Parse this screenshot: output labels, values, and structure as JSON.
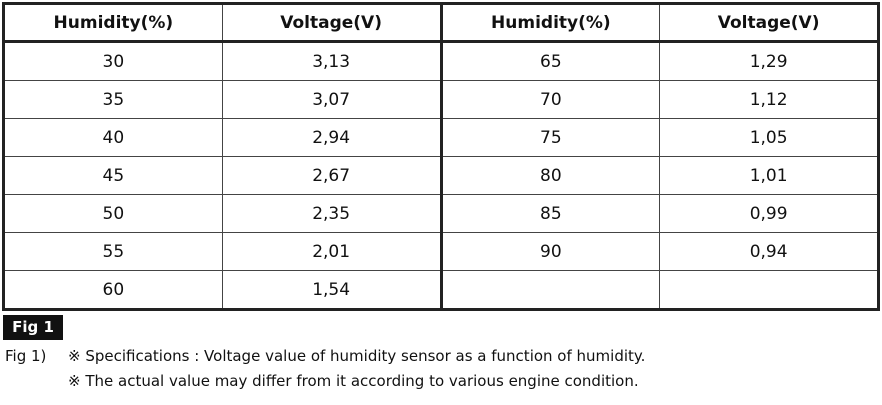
{
  "table": {
    "headers": [
      "Humidity(%)",
      "Voltage(V)",
      "Humidity(%)",
      "Voltage(V)"
    ],
    "rows": [
      [
        "30",
        "3,13",
        "65",
        "1,29"
      ],
      [
        "35",
        "3,07",
        "70",
        "1,12"
      ],
      [
        "40",
        "2,94",
        "75",
        "1,05"
      ],
      [
        "45",
        "2,67",
        "80",
        "1,01"
      ],
      [
        "50",
        "2,35",
        "85",
        "0,99"
      ],
      [
        "55",
        "2,01",
        "90",
        "0,94"
      ],
      [
        "60",
        "1,54"
      ]
    ]
  },
  "figure_label": "Fig 1",
  "caption": {
    "prefix": "Fig 1)",
    "lines": [
      "※ Specifications : Voltage value of humidity sensor as a function of humidity.",
      "※ The actual value may differ from it according to various engine condition."
    ]
  }
}
